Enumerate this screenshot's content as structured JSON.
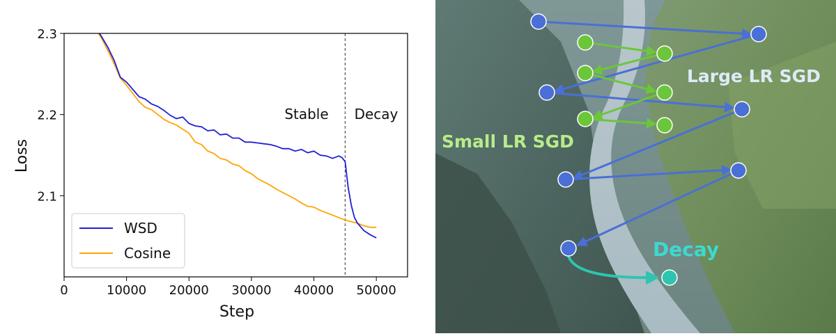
{
  "chart_data": {
    "type": "line",
    "title": "",
    "xlabel": "Step",
    "ylabel": "Loss",
    "xlim": [
      0,
      55000
    ],
    "ylim": [
      2.0,
      2.3
    ],
    "x_ticks": [
      0,
      10000,
      20000,
      30000,
      40000,
      50000
    ],
    "x_tick_labels": [
      "0",
      "10000",
      "20000",
      "30000",
      "40000",
      "50000"
    ],
    "y_ticks": [
      2.1,
      2.2,
      2.3
    ],
    "y_tick_labels": [
      "2.1",
      "2.2",
      "2.3"
    ],
    "grid": false,
    "legend": "lower-left",
    "annotations": [
      {
        "text": "Stable",
        "side": "left"
      },
      {
        "text": "Decay",
        "side": "right"
      }
    ],
    "vline_x": 45000,
    "series": [
      {
        "name": "WSD",
        "color": "#1f1fd6",
        "x": [
          5500,
          6000,
          7000,
          8000,
          9000,
          10000,
          11000,
          12000,
          13000,
          14000,
          15000,
          16000,
          17000,
          18000,
          19000,
          20000,
          21000,
          22000,
          23000,
          24000,
          25000,
          26000,
          27000,
          28000,
          29000,
          30000,
          31000,
          32000,
          33000,
          34000,
          35000,
          36000,
          37000,
          38000,
          39000,
          40000,
          41000,
          42000,
          43000,
          44000,
          44500,
          45000,
          45500,
          46000,
          46500,
          47000,
          48000,
          49000,
          50000
        ],
        "y": [
          2.302,
          2.296,
          2.283,
          2.267,
          2.246,
          2.24,
          2.231,
          2.222,
          2.219,
          2.213,
          2.21,
          2.205,
          2.199,
          2.195,
          2.197,
          2.189,
          2.186,
          2.185,
          2.18,
          2.181,
          2.175,
          2.176,
          2.171,
          2.171,
          2.166,
          2.166,
          2.165,
          2.164,
          2.163,
          2.161,
          2.158,
          2.158,
          2.155,
          2.157,
          2.153,
          2.155,
          2.15,
          2.149,
          2.146,
          2.149,
          2.147,
          2.142,
          2.11,
          2.088,
          2.073,
          2.066,
          2.057,
          2.052,
          2.048
        ]
      },
      {
        "name": "Cosine",
        "color": "#ffa500",
        "x": [
          5500,
          6000,
          7000,
          8000,
          9000,
          10000,
          11000,
          12000,
          13000,
          14000,
          15000,
          16000,
          17000,
          18000,
          19000,
          20000,
          21000,
          22000,
          23000,
          24000,
          25000,
          26000,
          27000,
          28000,
          29000,
          30000,
          31000,
          32000,
          33000,
          34000,
          35000,
          36000,
          37000,
          38000,
          39000,
          40000,
          41000,
          42000,
          43000,
          44000,
          45000,
          46000,
          47000,
          48000,
          49000,
          50000
        ],
        "y": [
          2.3,
          2.294,
          2.279,
          2.263,
          2.245,
          2.236,
          2.226,
          2.216,
          2.209,
          2.206,
          2.2,
          2.194,
          2.19,
          2.187,
          2.182,
          2.177,
          2.166,
          2.163,
          2.155,
          2.152,
          2.146,
          2.144,
          2.139,
          2.137,
          2.131,
          2.127,
          2.121,
          2.117,
          2.113,
          2.108,
          2.104,
          2.1,
          2.096,
          2.091,
          2.087,
          2.086,
          2.082,
          2.079,
          2.076,
          2.073,
          2.07,
          2.068,
          2.066,
          2.063,
          2.061,
          2.061
        ]
      }
    ]
  },
  "diagram": {
    "labels": {
      "large": "Large LR SGD",
      "small": "Small LR SGD",
      "decay": "Decay"
    },
    "colors": {
      "blue": "#4a6fd6",
      "green": "#6cc63a",
      "teal": "#2ec4b0",
      "large_text": "#dfeaf8",
      "small_text": "#b8ec8a",
      "decay_text": "#3fd8d0"
    }
  }
}
